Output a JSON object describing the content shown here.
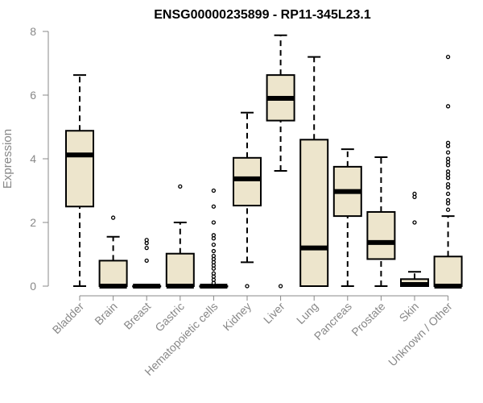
{
  "chart_data": {
    "type": "boxplot",
    "title": "ENSG00000235899 - RP11-345L23.1",
    "xlabel": "",
    "ylabel": "Expression",
    "ylim": [
      0,
      8
    ],
    "yticks": [
      0,
      2,
      4,
      6,
      8
    ],
    "colors": {
      "box_fill": "#ede5cc",
      "stroke": "#000000",
      "axis": "#888888"
    },
    "categories": [
      "Bladder",
      "Brain",
      "Breast",
      "Gastric",
      "Hematopoietic cells",
      "Kidney",
      "Liver",
      "Lung",
      "Pancreas",
      "Prostate",
      "Skin",
      "Unknown / Other"
    ],
    "boxes": [
      {
        "name": "Bladder",
        "min": 0,
        "q1": 2.5,
        "median": 4.12,
        "q3": 4.88,
        "max": 6.63,
        "outliers": []
      },
      {
        "name": "Brain",
        "min": 0,
        "q1": 0,
        "median": 0,
        "q3": 0.8,
        "max": 1.55,
        "outliers": [
          2.15
        ]
      },
      {
        "name": "Breast",
        "min": 0,
        "q1": 0,
        "median": 0,
        "q3": 0,
        "max": 0,
        "outliers": [
          0.8,
          1.2,
          1.35,
          1.45
        ]
      },
      {
        "name": "Gastric",
        "min": 0,
        "q1": 0,
        "median": 0,
        "q3": 1.02,
        "max": 2.0,
        "outliers": [
          3.13
        ]
      },
      {
        "name": "Hematopoietic cells",
        "min": 0,
        "q1": 0,
        "median": 0,
        "q3": 0,
        "max": 0,
        "outliers": [
          0.1,
          0.2,
          0.3,
          0.4,
          0.55,
          0.65,
          0.75,
          0.85,
          0.95,
          1.1,
          1.3,
          1.5,
          1.6,
          2.0,
          2.5,
          3.0
        ]
      },
      {
        "name": "Kidney",
        "min": 0.75,
        "q1": 2.53,
        "median": 3.37,
        "q3": 4.03,
        "max": 5.45,
        "outliers": [
          0
        ]
      },
      {
        "name": "Liver",
        "min": 3.62,
        "q1": 5.2,
        "median": 5.9,
        "q3": 6.63,
        "max": 7.88,
        "outliers": [
          0
        ]
      },
      {
        "name": "Lung",
        "min": 0,
        "q1": 0,
        "median": 1.2,
        "q3": 4.6,
        "max": 7.2,
        "outliers": []
      },
      {
        "name": "Pancreas",
        "min": 0,
        "q1": 2.2,
        "median": 2.97,
        "q3": 3.75,
        "max": 4.3,
        "outliers": []
      },
      {
        "name": "Prostate",
        "min": 0,
        "q1": 0.85,
        "median": 1.37,
        "q3": 2.33,
        "max": 4.05,
        "outliers": []
      },
      {
        "name": "Skin",
        "min": 0,
        "q1": 0,
        "median": 0.05,
        "q3": 0.22,
        "max": 0.45,
        "outliers": [
          2.0,
          2.8,
          2.9
        ]
      },
      {
        "name": "Unknown / Other",
        "min": 0,
        "q1": 0,
        "median": 0,
        "q3": 0.93,
        "max": 2.2,
        "outliers": [
          2.4,
          2.6,
          2.7,
          2.9,
          3.1,
          3.2,
          3.4,
          3.5,
          3.6,
          3.8,
          3.9,
          4.0,
          4.2,
          4.4,
          4.5,
          5.65,
          7.2
        ]
      }
    ]
  }
}
